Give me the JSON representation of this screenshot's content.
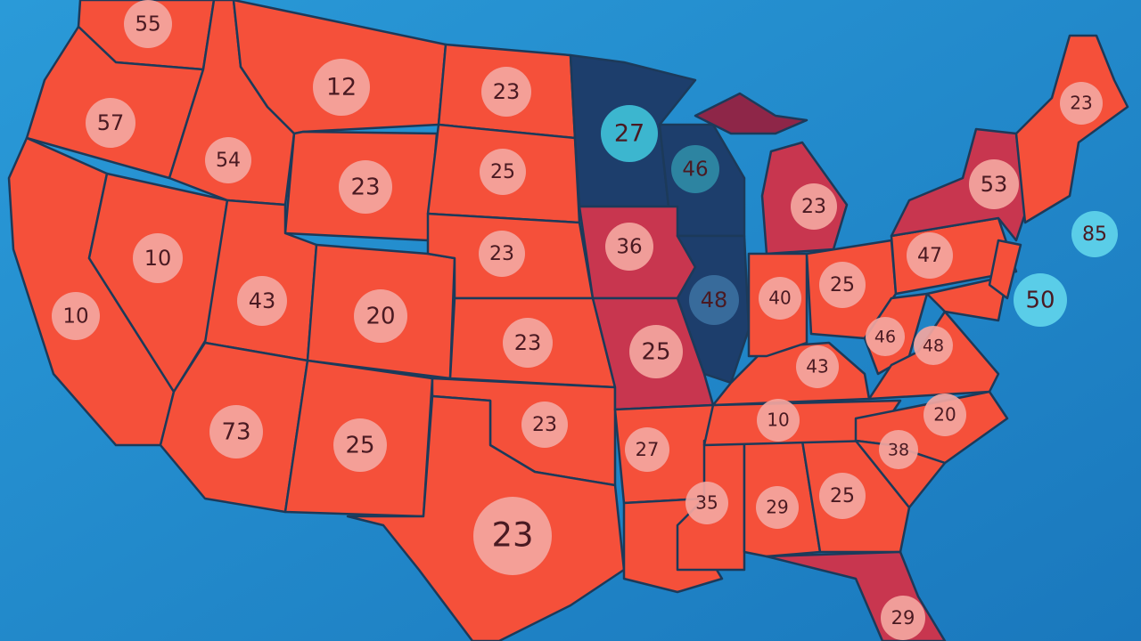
{
  "map": {
    "state_labels": [
      55,
      57,
      54,
      12,
      23,
      23,
      25,
      10,
      10,
      43,
      20,
      23,
      23,
      73,
      25,
      23,
      23,
      27,
      46,
      23,
      36,
      48,
      25,
      27,
      35,
      29,
      25,
      29,
      10,
      43,
      40,
      25,
      46,
      48,
      20,
      38,
      47,
      53,
      23,
      85,
      50
    ]
  }
}
